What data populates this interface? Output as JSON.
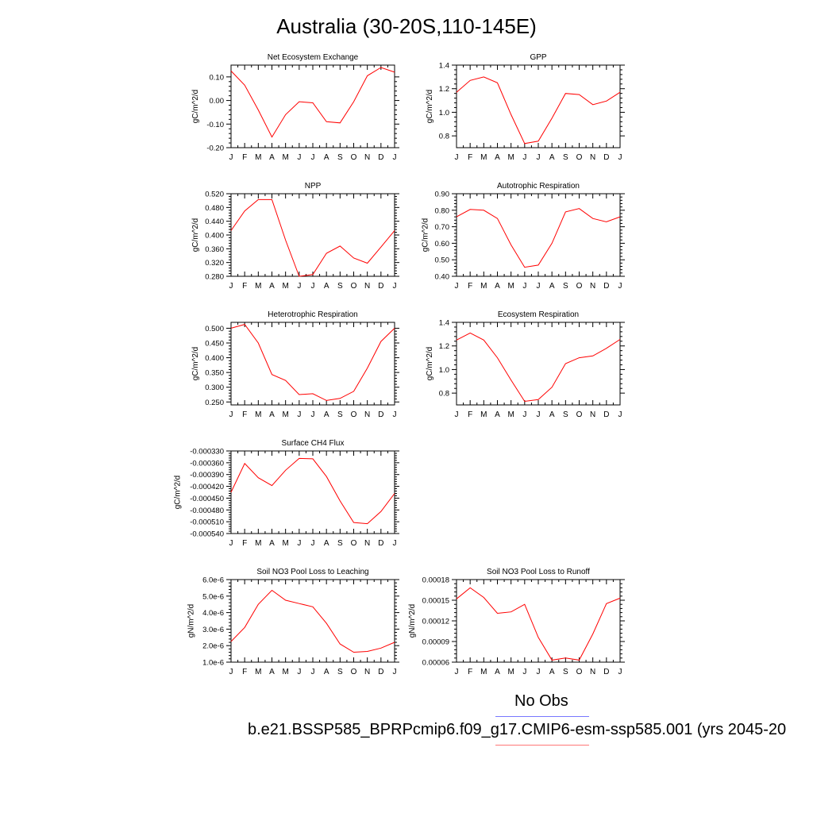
{
  "title": "Australia (30-20S,110-145E)",
  "legend": {
    "obs_label": "No Obs",
    "case_label": "b.e21.BSSP585_BPRPcmip6.f09_g17.CMIP6-esm-ssp585.001 (yrs 2045-20",
    "obs_color": "#7777ff",
    "case_color": "#ff7777"
  },
  "colors": {
    "line": "#ff0000",
    "axis": "#000000"
  },
  "chart_data": [
    {
      "type": "line",
      "title": "Net Ecosystem Exchange",
      "ylabel": "gC/m^2/d",
      "xlabel": "",
      "categories": [
        "J",
        "F",
        "M",
        "A",
        "M",
        "J",
        "J",
        "A",
        "S",
        "O",
        "N",
        "D",
        "J"
      ],
      "ylim": [
        -0.2,
        0.15
      ],
      "yticks": [
        -0.2,
        -0.1,
        0.0,
        0.1
      ],
      "ytick_labels": [
        "-0.20",
        "-0.10",
        "0.00",
        "0.10"
      ],
      "series": [
        {
          "values": [
            0.125,
            0.065,
            -0.04,
            -0.155,
            -0.06,
            -0.005,
            -0.01,
            -0.09,
            -0.095,
            -0.005,
            0.105,
            0.14,
            0.12
          ]
        }
      ]
    },
    {
      "type": "line",
      "title": "GPP",
      "ylabel": "gC/m^2/d",
      "xlabel": "",
      "categories": [
        "J",
        "F",
        "M",
        "A",
        "M",
        "J",
        "J",
        "A",
        "S",
        "O",
        "N",
        "D",
        "J"
      ],
      "ylim": [
        0.7,
        1.4
      ],
      "yticks": [
        0.8,
        1.0,
        1.2,
        1.4
      ],
      "ytick_labels": [
        "0.8",
        "1.0",
        "1.2",
        "1.4"
      ],
      "series": [
        {
          "values": [
            1.17,
            1.27,
            1.3,
            1.25,
            0.98,
            0.735,
            0.755,
            0.95,
            1.16,
            1.15,
            1.065,
            1.095,
            1.17
          ]
        }
      ]
    },
    {
      "type": "line",
      "title": "NPP",
      "ylabel": "gC/m^2/d",
      "xlabel": "",
      "categories": [
        "J",
        "F",
        "M",
        "A",
        "M",
        "J",
        "J",
        "A",
        "S",
        "O",
        "N",
        "D",
        "J"
      ],
      "ylim": [
        0.28,
        0.52
      ],
      "yticks": [
        0.28,
        0.32,
        0.36,
        0.4,
        0.44,
        0.48,
        0.52
      ],
      "ytick_labels": [
        "0.280",
        "0.320",
        "0.360",
        "0.400",
        "0.440",
        "0.480",
        "0.520"
      ],
      "series": [
        {
          "values": [
            0.413,
            0.47,
            0.503,
            0.503,
            0.385,
            0.28,
            0.285,
            0.347,
            0.368,
            0.333,
            0.318,
            0.365,
            0.413
          ]
        }
      ]
    },
    {
      "type": "line",
      "title": "Autotrophic Respiration",
      "ylabel": "gC/m^2/d",
      "xlabel": "",
      "categories": [
        "J",
        "F",
        "M",
        "A",
        "M",
        "J",
        "J",
        "A",
        "S",
        "O",
        "N",
        "D",
        "J"
      ],
      "ylim": [
        0.4,
        0.9
      ],
      "yticks": [
        0.4,
        0.5,
        0.6,
        0.7,
        0.8,
        0.9
      ],
      "ytick_labels": [
        "0.40",
        "0.50",
        "0.60",
        "0.70",
        "0.80",
        "0.90"
      ],
      "series": [
        {
          "values": [
            0.76,
            0.805,
            0.8,
            0.75,
            0.59,
            0.455,
            0.468,
            0.6,
            0.79,
            0.81,
            0.75,
            0.73,
            0.76
          ]
        }
      ]
    },
    {
      "type": "line",
      "title": "Heterotrophic Respiration",
      "ylabel": "gC/m^2/d",
      "xlabel": "",
      "categories": [
        "J",
        "F",
        "M",
        "A",
        "M",
        "J",
        "J",
        "A",
        "S",
        "O",
        "N",
        "D",
        "J"
      ],
      "ylim": [
        0.24,
        0.52
      ],
      "yticks": [
        0.25,
        0.3,
        0.35,
        0.4,
        0.45,
        0.5
      ],
      "ytick_labels": [
        "0.250",
        "0.300",
        "0.350",
        "0.400",
        "0.450",
        "0.500"
      ],
      "series": [
        {
          "values": [
            0.5,
            0.513,
            0.45,
            0.343,
            0.323,
            0.275,
            0.278,
            0.255,
            0.262,
            0.286,
            0.365,
            0.455,
            0.5
          ]
        }
      ]
    },
    {
      "type": "line",
      "title": "Ecosystem Respiration",
      "ylabel": "gC/m^2/d",
      "xlabel": "",
      "categories": [
        "J",
        "F",
        "M",
        "A",
        "M",
        "J",
        "J",
        "A",
        "S",
        "O",
        "N",
        "D",
        "J"
      ],
      "ylim": [
        0.7,
        1.4
      ],
      "yticks": [
        0.8,
        1.0,
        1.2,
        1.4
      ],
      "ytick_labels": [
        "0.8",
        "1.0",
        "1.2",
        "1.4"
      ],
      "series": [
        {
          "values": [
            1.25,
            1.31,
            1.25,
            1.1,
            0.91,
            0.73,
            0.745,
            0.85,
            1.05,
            1.1,
            1.115,
            1.18,
            1.255
          ]
        }
      ]
    },
    {
      "type": "line",
      "title": "Surface CH4 Flux",
      "ylabel": "gC/m^2/d",
      "xlabel": "",
      "categories": [
        "J",
        "F",
        "M",
        "A",
        "M",
        "J",
        "J",
        "A",
        "S",
        "O",
        "N",
        "D",
        "J"
      ],
      "ylim": [
        -0.00054,
        -0.00033
      ],
      "yticks": [
        -0.00054,
        -0.00051,
        -0.00048,
        -0.00045,
        -0.00042,
        -0.00039,
        -0.00036,
        -0.00033
      ],
      "ytick_labels": [
        "-0.000540",
        "-0.000510",
        "-0.000480",
        "-0.000450",
        "-0.000420",
        "-0.000390",
        "-0.000360",
        "-0.000330"
      ],
      "series": [
        {
          "values": [
            -0.000435,
            -0.000362,
            -0.000398,
            -0.000418,
            -0.000379,
            -0.000349,
            -0.00035,
            -0.000395,
            -0.000457,
            -0.000512,
            -0.000515,
            -0.000484,
            -0.000438
          ]
        }
      ]
    },
    {
      "type": "line",
      "title": "Soil NO3 Pool Loss to Leaching",
      "ylabel": "gN/m^2/d",
      "xlabel": "",
      "categories": [
        "J",
        "F",
        "M",
        "A",
        "M",
        "J",
        "J",
        "A",
        "S",
        "O",
        "N",
        "D",
        "J"
      ],
      "ylim": [
        1e-06,
        6e-06
      ],
      "yticks": [
        1e-06,
        2e-06,
        3e-06,
        4e-06,
        5e-06,
        6e-06
      ],
      "ytick_labels": [
        "1.0e-6",
        "2.0e-6",
        "3.0e-6",
        "4.0e-6",
        "5.0e-6",
        "6.0e-6"
      ],
      "series": [
        {
          "values": [
            2.25e-06,
            3.1e-06,
            4.5e-06,
            5.35e-06,
            4.75e-06,
            4.55e-06,
            4.35e-06,
            3.35e-06,
            2.1e-06,
            1.6e-06,
            1.65e-06,
            1.85e-06,
            2.2e-06
          ]
        }
      ]
    },
    {
      "type": "line",
      "title": "Soil NO3 Pool Loss to Runoff",
      "ylabel": "gN/m^2/d",
      "xlabel": "",
      "categories": [
        "J",
        "F",
        "M",
        "A",
        "M",
        "J",
        "J",
        "A",
        "S",
        "O",
        "N",
        "D",
        "J"
      ],
      "ylim": [
        6e-05,
        0.00018
      ],
      "yticks": [
        6e-05,
        9e-05,
        0.00012,
        0.00015,
        0.00018
      ],
      "ytick_labels": [
        "0.00006",
        "0.00009",
        "0.00012",
        "0.00015",
        "0.00018"
      ],
      "series": [
        {
          "values": [
            0.000152,
            0.000168,
            0.000154,
            0.000131,
            0.000133,
            0.000144,
            9.6e-05,
            6.3e-05,
            6.6e-05,
            6.3e-05,
            0.000101,
            0.000145,
            0.000153
          ]
        }
      ]
    }
  ]
}
